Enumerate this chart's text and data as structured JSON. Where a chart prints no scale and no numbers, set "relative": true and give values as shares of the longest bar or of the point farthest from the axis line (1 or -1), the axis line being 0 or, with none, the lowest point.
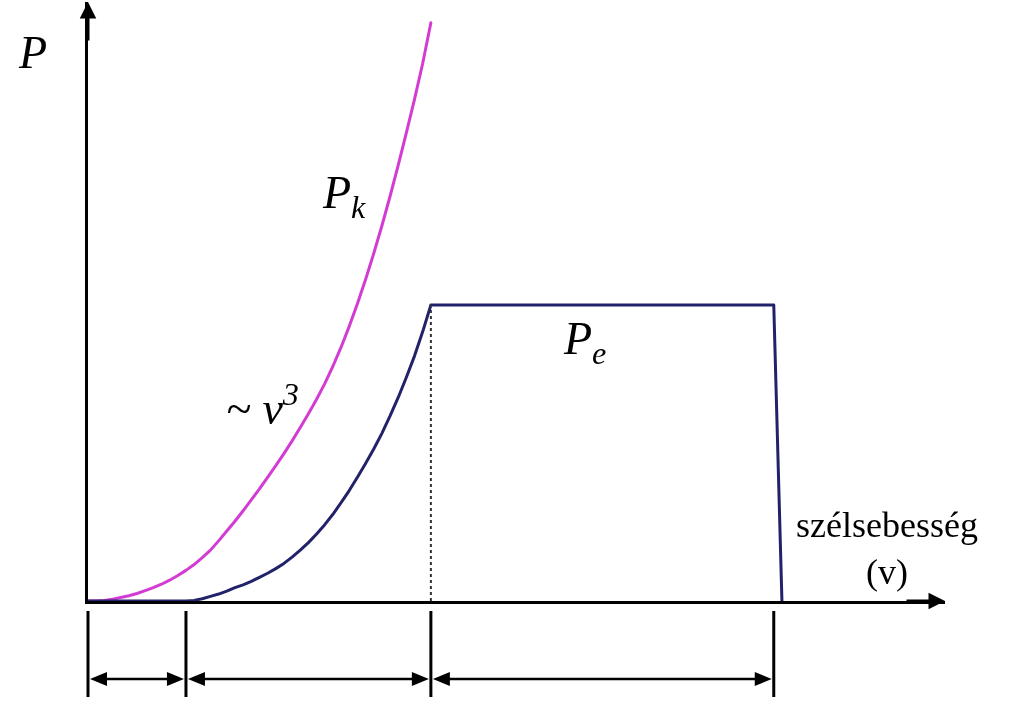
{
  "chart_data": {
    "type": "line",
    "relative": true,
    "ylabel": "P",
    "xlabel": "szélsebesség\n(v)",
    "categories": [
      null,
      null,
      null,
      null,
      null,
      null,
      null,
      null,
      null,
      null,
      null,
      null,
      null,
      null,
      null,
      null,
      null,
      null,
      null,
      null,
      null,
      null,
      null,
      null,
      null,
      null,
      null,
      null,
      null,
      null,
      null,
      null,
      null,
      null,
      null,
      null,
      null,
      null,
      null,
      null,
      null,
      null,
      null,
      null,
      null,
      null,
      null,
      null,
      null,
      null,
      null,
      null,
      null,
      null,
      null,
      null,
      null,
      null,
      null,
      null,
      null,
      null,
      null,
      null,
      null,
      null,
      null,
      null,
      null,
      null,
      null,
      null,
      null,
      null,
      null,
      null,
      null,
      null,
      null,
      null,
      null,
      null,
      null,
      null,
      null,
      null
    ],
    "series": [
      {
        "name": "P$_{k}$",
        "color": "#d23cd2",
        "values": [
          0,
          0,
          0.001,
          0.003,
          0.006,
          0.009,
          0.013,
          0.018,
          0.023,
          0.029,
          0.036,
          0.044,
          0.053,
          0.063,
          0.075,
          0.088,
          0.104,
          0.121,
          0.138,
          0.156,
          0.175,
          0.194,
          0.214,
          0.234,
          0.255,
          0.277,
          0.3,
          0.324,
          0.349,
          0.376,
          0.406,
          0.439,
          0.475,
          0.514,
          0.556,
          0.601,
          0.649,
          0.7,
          0.754,
          0.81,
          0.868,
          0.93,
          1,
          null,
          null,
          null,
          null,
          null,
          null,
          null,
          null,
          null,
          null,
          null,
          null,
          null,
          null,
          null,
          null,
          null,
          null,
          null,
          null,
          null,
          null,
          null,
          null,
          null,
          null,
          null,
          null,
          null,
          null,
          null,
          null,
          null,
          null,
          null,
          null,
          null,
          null,
          null,
          null,
          null,
          null,
          null
        ]
      },
      {
        "name": "P$_{e}$",
        "color": "#22226a",
        "values": [
          0,
          0,
          0,
          0,
          0,
          0,
          0,
          0,
          0,
          0,
          0,
          0,
          0,
          0.001,
          0.004,
          0.008,
          0.012,
          0.017,
          0.023,
          0.028,
          0.034,
          0.041,
          0.048,
          0.056,
          0.065,
          0.076,
          0.088,
          0.101,
          0.116,
          0.132,
          0.15,
          0.17,
          0.191,
          0.214,
          0.238,
          0.263,
          0.29,
          0.32,
          0.352,
          0.387,
          0.424,
          0.466,
          0.512,
          0.512,
          0.512,
          0.512,
          0.512,
          0.512,
          0.512,
          0.512,
          0.512,
          0.512,
          0.512,
          0.512,
          0.512,
          0.512,
          0.512,
          0.512,
          0.512,
          0.512,
          0.512,
          0.512,
          0.512,
          0.512,
          0.512,
          0.512,
          0.512,
          0.512,
          0.512,
          0.512,
          0.512,
          0.512,
          0.512,
          0.512,
          0.512,
          0.512,
          0.512,
          0.512,
          0.512,
          0.512,
          0.512,
          0.512,
          0.512,
          0.512,
          0.512,
          0
        ]
      }
    ],
    "annotations": [
      "~ v$^{3}$"
    ]
  }
}
